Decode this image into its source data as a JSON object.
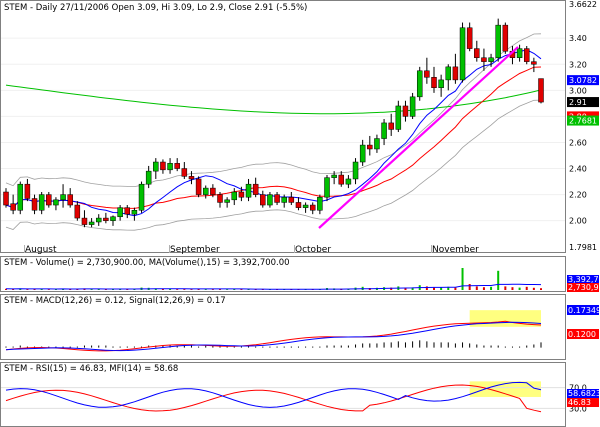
{
  "header": {
    "price": "STEM - Daily 27/11/2006 Open 3.09, Hi 3.09, Lo 2.9, Close 2.91 (-5.5%)",
    "volume": "STEM - Volume() = 2,730,900.00, MA(Volume(),15) = 3,392,700.00",
    "macd": "STEM - MACD(12,26) = 0.12, Signal(12,26,9) = 0.17",
    "rsi": "STEM - RSI(15) = 46.83, MFI(14) = 58.68"
  },
  "month_labels": [
    "August",
    "September",
    "October",
    "November"
  ],
  "right_axis": {
    "price_ticks": [
      "3.6622",
      "3.40",
      "3.20",
      "3.00",
      "2.80",
      "2.60",
      "2.40",
      "2.20",
      "2.00",
      "1.7981"
    ],
    "price_badges": [
      {
        "text": "3.0782",
        "color": "#0000ff",
        "value": 3.0782
      },
      {
        "text": "2.91",
        "color": "#000000",
        "value": 2.91
      },
      {
        "text": "2.80",
        "color": "#ff0000",
        "value": 2.8
      },
      {
        "text": "2.7681",
        "color": "#00c000",
        "value": 2.7681
      }
    ],
    "volume_badges": [
      {
        "text": "3,392,70",
        "color": "#0000ff"
      },
      {
        "text": "2,730,90",
        "color": "#ff0000"
      }
    ],
    "macd_badges": [
      {
        "text": "0.173494",
        "color": "#0000ff"
      },
      {
        "text": "0.1200",
        "color": "#ff0000"
      }
    ],
    "rsi_ticks": [
      "70.0",
      "30.0"
    ],
    "rsi_badges": [
      {
        "text": "58.6823",
        "color": "#0000ff"
      },
      {
        "text": "46.83",
        "color": "#ff0000"
      }
    ]
  },
  "colors": {
    "up": "#00c000",
    "down": "#e00000",
    "ma_short": "#0000ff",
    "ma_mid": "#ff0000",
    "ma_long": "#00c000",
    "envelope": "#a0a0a0",
    "trendline": "#ff00ff",
    "highlight": "#ffff80"
  },
  "chart_data": {
    "type": "candlestick",
    "symbol": "STEM",
    "ylim": [
      1.7981,
      3.6622
    ],
    "candles": [
      [
        2.22,
        2.25,
        2.1,
        2.12
      ],
      [
        2.13,
        2.2,
        2.05,
        2.08
      ],
      [
        2.08,
        2.3,
        2.05,
        2.28
      ],
      [
        2.28,
        2.32,
        2.15,
        2.17
      ],
      [
        2.17,
        2.2,
        2.05,
        2.08
      ],
      [
        2.08,
        2.22,
        2.05,
        2.2
      ],
      [
        2.2,
        2.22,
        2.1,
        2.12
      ],
      [
        2.12,
        2.18,
        2.08,
        2.16
      ],
      [
        2.16,
        2.28,
        2.1,
        2.2
      ],
      [
        2.2,
        2.25,
        2.1,
        2.12
      ],
      [
        2.12,
        2.15,
        2.0,
        2.02
      ],
      [
        2.02,
        2.08,
        1.95,
        1.97
      ],
      [
        1.97,
        2.02,
        1.95,
        1.99
      ],
      [
        1.99,
        2.05,
        1.96,
        2.02
      ],
      [
        2.02,
        2.06,
        1.98,
        2.0
      ],
      [
        2.0,
        2.04,
        1.96,
        2.03
      ],
      [
        2.03,
        2.12,
        2.0,
        2.1
      ],
      [
        2.1,
        2.12,
        2.02,
        2.05
      ],
      [
        2.05,
        2.1,
        2.0,
        2.08
      ],
      [
        2.08,
        2.3,
        2.06,
        2.28
      ],
      [
        2.28,
        2.42,
        2.25,
        2.38
      ],
      [
        2.38,
        2.48,
        2.32,
        2.45
      ],
      [
        2.45,
        2.47,
        2.36,
        2.39
      ],
      [
        2.39,
        2.48,
        2.36,
        2.44
      ],
      [
        2.44,
        2.48,
        2.38,
        2.4
      ],
      [
        2.4,
        2.45,
        2.32,
        2.34
      ],
      [
        2.34,
        2.38,
        2.28,
        2.32
      ],
      [
        2.32,
        2.34,
        2.18,
        2.2
      ],
      [
        2.2,
        2.27,
        2.17,
        2.25
      ],
      [
        2.25,
        2.28,
        2.18,
        2.2
      ],
      [
        2.2,
        2.22,
        2.1,
        2.14
      ],
      [
        2.14,
        2.18,
        2.1,
        2.16
      ],
      [
        2.16,
        2.25,
        2.12,
        2.22
      ],
      [
        2.22,
        2.26,
        2.15,
        2.18
      ],
      [
        2.18,
        2.32,
        2.15,
        2.28
      ],
      [
        2.28,
        2.33,
        2.18,
        2.2
      ],
      [
        2.2,
        2.23,
        2.1,
        2.12
      ],
      [
        2.12,
        2.22,
        2.1,
        2.2
      ],
      [
        2.2,
        2.22,
        2.12,
        2.14
      ],
      [
        2.14,
        2.2,
        2.1,
        2.18
      ],
      [
        2.18,
        2.22,
        2.12,
        2.14
      ],
      [
        2.14,
        2.18,
        2.08,
        2.1
      ],
      [
        2.1,
        2.14,
        2.06,
        2.12
      ],
      [
        2.12,
        2.14,
        2.05,
        2.08
      ],
      [
        2.08,
        2.2,
        2.05,
        2.18
      ],
      [
        2.18,
        2.35,
        2.15,
        2.33
      ],
      [
        2.33,
        2.38,
        2.28,
        2.35
      ],
      [
        2.35,
        2.38,
        2.26,
        2.28
      ],
      [
        2.28,
        2.35,
        2.25,
        2.32
      ],
      [
        2.32,
        2.48,
        2.28,
        2.45
      ],
      [
        2.45,
        2.62,
        2.42,
        2.58
      ],
      [
        2.58,
        2.65,
        2.5,
        2.55
      ],
      [
        2.55,
        2.66,
        2.52,
        2.63
      ],
      [
        2.63,
        2.78,
        2.58,
        2.75
      ],
      [
        2.75,
        2.82,
        2.65,
        2.7
      ],
      [
        2.7,
        2.92,
        2.68,
        2.88
      ],
      [
        2.88,
        2.92,
        2.76,
        2.8
      ],
      [
        2.8,
        2.98,
        2.78,
        2.95
      ],
      [
        2.95,
        3.18,
        2.92,
        3.15
      ],
      [
        3.15,
        3.25,
        3.05,
        3.1
      ],
      [
        3.1,
        3.18,
        2.98,
        3.02
      ],
      [
        3.02,
        3.12,
        2.95,
        3.08
      ],
      [
        3.08,
        3.2,
        3.0,
        3.18
      ],
      [
        3.18,
        3.28,
        3.05,
        3.08
      ],
      [
        3.08,
        3.52,
        3.06,
        3.48
      ],
      [
        3.48,
        3.52,
        3.3,
        3.32
      ],
      [
        3.32,
        3.38,
        3.22,
        3.25
      ],
      [
        3.25,
        3.32,
        3.15,
        3.22
      ],
      [
        3.22,
        3.28,
        3.18,
        3.25
      ],
      [
        3.25,
        3.55,
        3.22,
        3.5
      ],
      [
        3.5,
        3.52,
        3.28,
        3.3
      ],
      [
        3.3,
        3.34,
        3.2,
        3.25
      ],
      [
        3.25,
        3.35,
        3.22,
        3.32
      ],
      [
        3.32,
        3.34,
        3.2,
        3.22
      ],
      [
        3.22,
        3.25,
        3.14,
        3.2
      ],
      [
        3.09,
        3.09,
        2.9,
        2.91
      ]
    ],
    "volume": [
      0.3,
      0.25,
      0.4,
      0.2,
      0.25,
      0.3,
      0.15,
      0.2,
      0.35,
      0.2,
      0.25,
      0.4,
      0.2,
      0.25,
      0.15,
      0.2,
      0.3,
      0.2,
      0.25,
      0.6,
      0.55,
      0.4,
      0.3,
      0.25,
      0.2,
      0.2,
      0.15,
      0.3,
      0.2,
      0.15,
      0.2,
      0.15,
      0.25,
      0.2,
      0.3,
      0.2,
      0.15,
      0.2,
      0.15,
      0.2,
      0.15,
      0.2,
      0.15,
      0.2,
      0.25,
      0.5,
      0.4,
      0.3,
      0.35,
      0.6,
      0.8,
      0.5,
      0.55,
      0.7,
      0.6,
      0.9,
      0.55,
      0.65,
      1.2,
      0.9,
      0.6,
      0.7,
      0.8,
      0.6,
      5.5,
      1.5,
      0.9,
      0.7,
      0.8,
      4.8,
      0.9,
      0.7,
      0.6,
      0.8,
      0.55,
      0.45
    ],
    "macd_hist": [
      0.01,
      0.01,
      0.02,
      0.01,
      0.01,
      0.01,
      0.01,
      0.01,
      0.01,
      0.01,
      0.01,
      0.02,
      0.02,
      0.02,
      0.02,
      0.01,
      0.01,
      0.01,
      0.01,
      0.01,
      0.02,
      0.02,
      0.02,
      0.02,
      0.02,
      0.02,
      0.02,
      0.01,
      0.02,
      0.02,
      0.02,
      0.01,
      0.01,
      0.01,
      0.02,
      0.01,
      0.01,
      0.01,
      0.01,
      0.01,
      0.01,
      0.01,
      0.01,
      0.01,
      0.01,
      0.02,
      0.02,
      0.02,
      0.02,
      0.03,
      0.04,
      0.04,
      0.04,
      0.05,
      0.05,
      0.06,
      0.05,
      0.06,
      0.07,
      0.06,
      0.05,
      0.05,
      0.05,
      0.04,
      0.05,
      0.04,
      0.03,
      0.02,
      0.02,
      0.02,
      0.01,
      0.01,
      0.01,
      0.02,
      0.03,
      0.05
    ],
    "macd_range": [
      -0.1,
      0.4
    ],
    "rsi_range": [
      0,
      100
    ],
    "highlight_boxes": {
      "macd": [
        [
          65,
          75
        ],
        [
          0.2,
          0.36
        ]
      ],
      "rsi": [
        [
          65,
          75
        ],
        [
          52,
          82
        ]
      ]
    }
  }
}
